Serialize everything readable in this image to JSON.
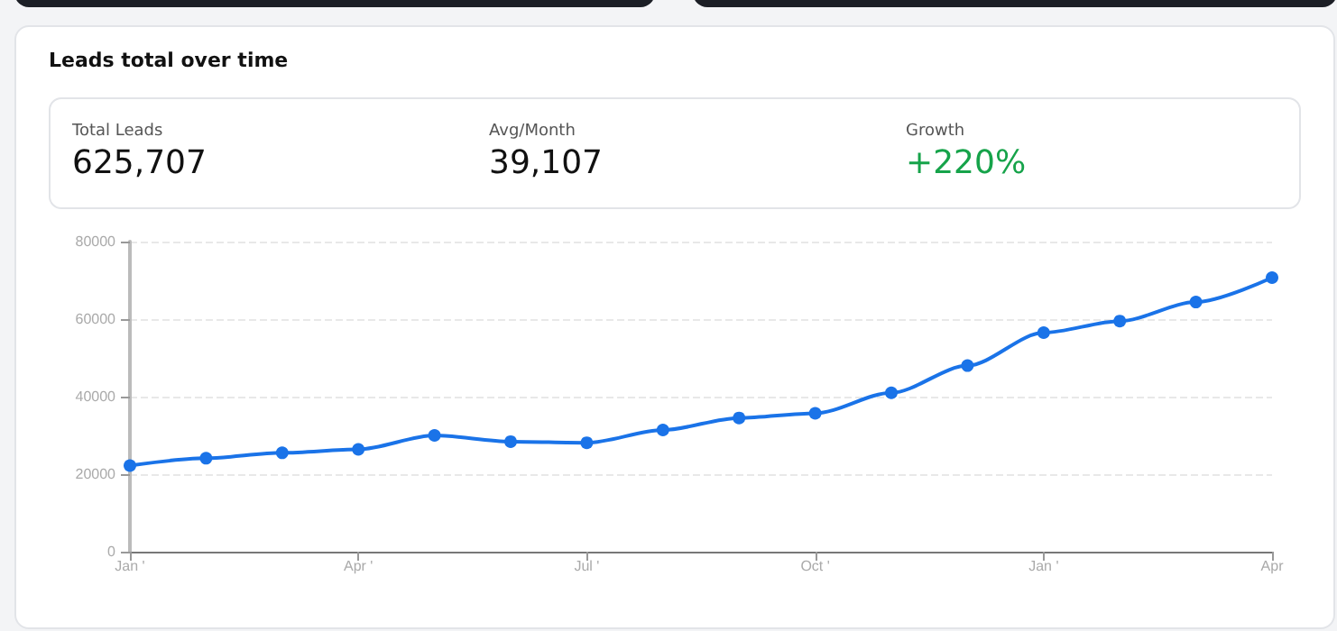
{
  "chart_data": {
    "type": "line",
    "title": "Leads total over time",
    "annotations": [
      "Total Leads",
      "625,707",
      "Avg/Month",
      "39,107",
      "Growth",
      "+220%"
    ],
    "categories": [
      "Jan '",
      null,
      null,
      "Apr '",
      null,
      null,
      "Jul '",
      null,
      null,
      "Oct '",
      null,
      null,
      "Jan '",
      null,
      null,
      "Apr"
    ],
    "series": [
      {
        "color": "#1a73e8",
        "values": [
          22200,
          24100,
          25500,
          26400,
          30000,
          28400,
          28100,
          31400,
          34500,
          35700,
          41000,
          48000,
          56500,
          59500,
          64400,
          70700
        ]
      }
    ],
    "ylim": [
      0,
      80000
    ],
    "yticks": [
      0,
      20000,
      40000,
      60000,
      80000
    ],
    "grid": "y",
    "marker": "circle",
    "line_style": "solid"
  }
}
